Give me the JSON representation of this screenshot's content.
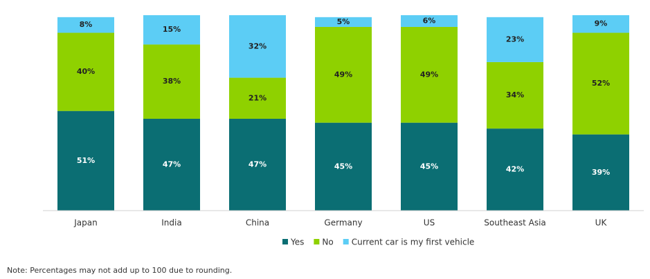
{
  "chart_data": {
    "type": "stacked_bar",
    "categories": [
      "Japan",
      "India",
      "China",
      "Germany",
      "US",
      "Southeast Asia",
      "UK"
    ],
    "series": [
      {
        "name": "Yes",
        "color": "#0b6e73",
        "values": [
          51,
          47,
          47,
          45,
          45,
          42,
          39
        ],
        "value_labels": [
          "51%",
          "47%",
          "47%",
          "45%",
          "45%",
          "42%",
          "39%"
        ]
      },
      {
        "name": "No",
        "color": "#8fd100",
        "values": [
          40,
          38,
          21,
          49,
          49,
          34,
          52
        ],
        "value_labels": [
          "40%",
          "38%",
          "21%",
          "49%",
          "49%",
          "34%",
          "52%"
        ]
      },
      {
        "name": "Current car is my first vehicle",
        "color": "#5ccdf5",
        "values": [
          8,
          15,
          32,
          5,
          6,
          23,
          9
        ],
        "value_labels": [
          "8%",
          "15%",
          "32%",
          "5%",
          "6%",
          "23%",
          "9%"
        ]
      }
    ],
    "ylim": [
      0,
      100
    ],
    "note": "Note: Percentages may not add up to 100 due to rounding."
  }
}
